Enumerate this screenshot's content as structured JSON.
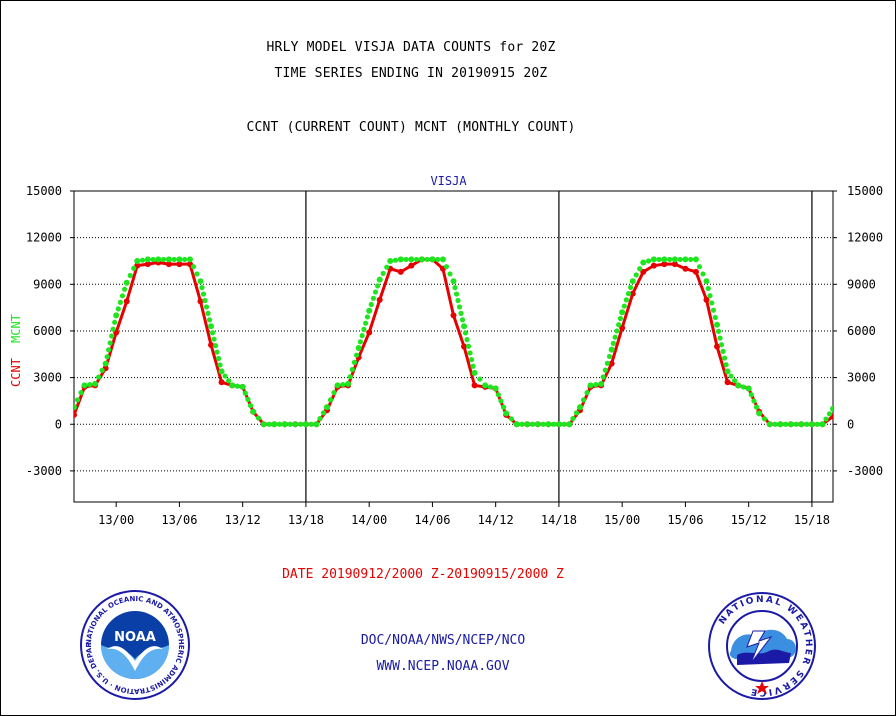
{
  "header": {
    "title_line1": "HRLY MODEL VISJA DATA COUNTS for 20Z",
    "title_line2": "TIME SERIES ENDING IN 20190915 20Z",
    "title_line3": "CCNT (CURRENT COUNT) MCNT (MONTHLY COUNT)"
  },
  "chart_data": {
    "type": "line",
    "title": "VISJA",
    "ylabel_ccnt": "CCNT",
    "ylabel_mcnt": "MCNT",
    "ylim": [
      -5000,
      15000
    ],
    "yticks": [
      -3000,
      0,
      3000,
      6000,
      9000,
      12000,
      15000
    ],
    "ytick_labels": [
      "-3000",
      "0",
      "3000",
      "6000",
      "9000",
      "12000",
      "15000"
    ],
    "xlim": [
      0,
      72
    ],
    "xticks": [
      4,
      10,
      16,
      22,
      28,
      34,
      40,
      46,
      52,
      58,
      64,
      70
    ],
    "xtick_labels": [
      "13/00",
      "13/06",
      "13/12",
      "13/18",
      "14/00",
      "14/06",
      "14/12",
      "14/18",
      "15/00",
      "15/06",
      "15/12",
      "15/18"
    ],
    "day_dividers": [
      22,
      46,
      70
    ],
    "grid": true,
    "series": [
      {
        "name": "CCNT",
        "color": "#e60000",
        "values": [
          600,
          2400,
          2500,
          3600,
          5900,
          7900,
          10200,
          10300,
          10400,
          10300,
          10300,
          10300,
          7900,
          5100,
          2700,
          2500,
          2400,
          800,
          0,
          0,
          0,
          0,
          0,
          0,
          900,
          2400,
          2500,
          4300,
          5900,
          8000,
          10000,
          9800,
          10200,
          10600,
          10600,
          10000,
          7000,
          5000,
          2500,
          2400,
          2300,
          600,
          0,
          0,
          0,
          0,
          0,
          0,
          900,
          2400,
          2500,
          3900,
          6200,
          8400,
          9800,
          10200,
          10300,
          10300,
          10000,
          9800,
          8000,
          5000,
          2700,
          2500,
          2300,
          800,
          0,
          0,
          0,
          0,
          0,
          0,
          500
        ]
      },
      {
        "name": "MCNT",
        "color": "#1ee61e",
        "values": [
          1100,
          2500,
          2600,
          3900,
          7000,
          9100,
          10500,
          10600,
          10600,
          10600,
          10600,
          10600,
          9200,
          6300,
          3400,
          2500,
          2400,
          800,
          0,
          0,
          0,
          0,
          0,
          0,
          1100,
          2500,
          2600,
          4900,
          7300,
          9300,
          10500,
          10600,
          10600,
          10600,
          10600,
          10600,
          9200,
          6300,
          3300,
          2500,
          2300,
          700,
          0,
          0,
          0,
          0,
          0,
          0,
          1100,
          2500,
          2600,
          4800,
          7200,
          9200,
          10400,
          10600,
          10600,
          10600,
          10600,
          10600,
          9200,
          6400,
          3400,
          2500,
          2300,
          700,
          0,
          0,
          0,
          0,
          0,
          0,
          1000
        ]
      }
    ]
  },
  "footer": {
    "date_range": "DATE 20190912/2000 Z-20190915/2000 Z",
    "org_line": "DOC/NOAA/NWS/NCEP/NCO",
    "url_line": "WWW.NCEP.NOAA.GOV"
  },
  "logos": {
    "noaa_text": "NOAA",
    "noaa_ring": "NATIONAL OCEANIC AND ATMOSPHERIC ADMINISTRATION · U.S. DEPARTMENT OF COMMERCE ·",
    "nws_ring": "NATIONAL WEATHER SERVICE"
  }
}
